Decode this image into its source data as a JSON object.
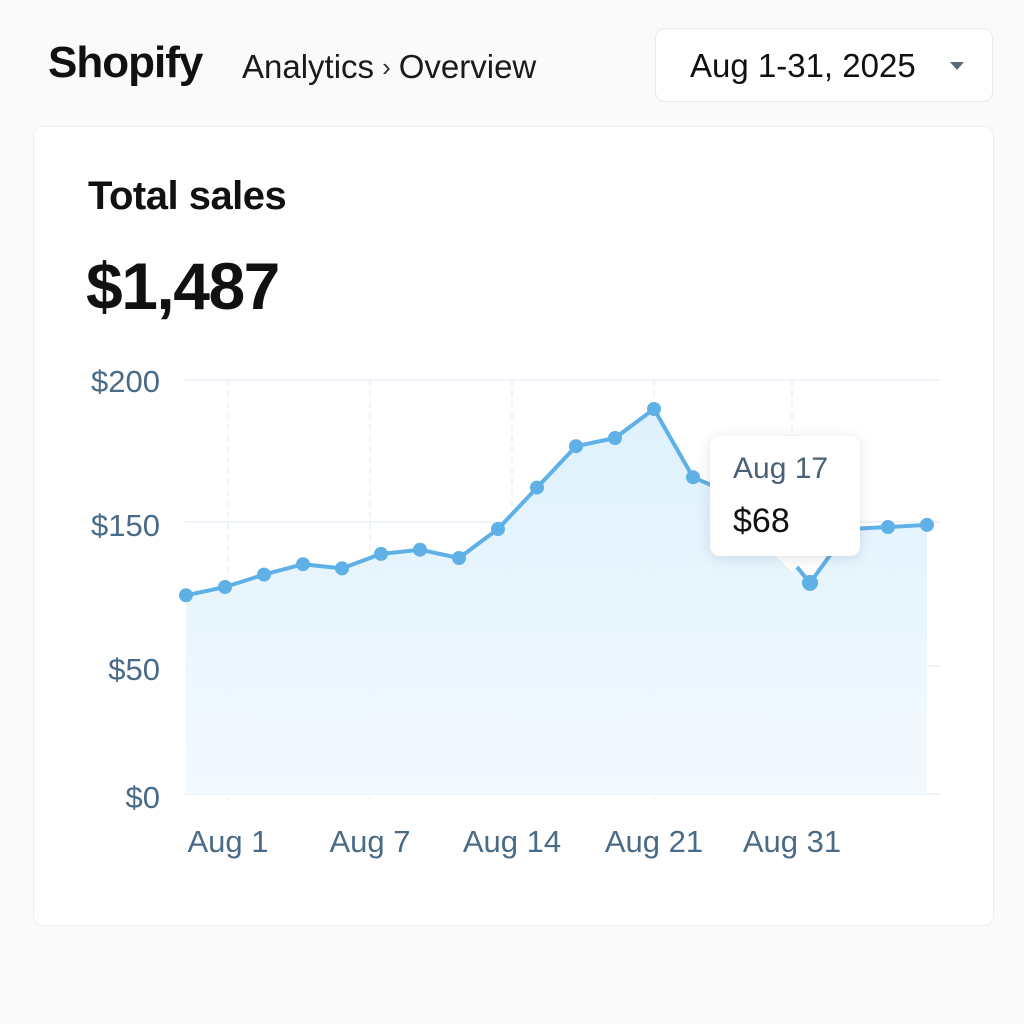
{
  "header": {
    "brand": "Shopify",
    "breadcrumb": [
      "Analytics",
      "Overview"
    ],
    "date_range": "Aug 1-31, 2025"
  },
  "card": {
    "title": "Total sales",
    "total": "$1,487"
  },
  "tooltip": {
    "date": "Aug 17",
    "value": "$68"
  },
  "colors": {
    "line": "#5eb0e6",
    "fill": "#e6f5fd",
    "axis_text": "#4a6b88"
  },
  "chart_data": {
    "type": "line",
    "y_tick_labels": [
      "$200",
      "$150",
      "$50",
      "$0"
    ],
    "x_tick_labels": [
      "Aug 1",
      "Aug 7",
      "Aug 14",
      "Aug 21",
      "Aug 31"
    ],
    "series": [
      {
        "values": [
          96,
          100,
          106,
          111,
          109,
          116,
          118,
          114,
          128,
          148,
          168,
          172,
          186,
          153,
          145,
          125,
          102,
          128,
          129,
          130
        ]
      }
    ],
    "highlight_index": 16,
    "area_fill": true,
    "grid": true
  }
}
